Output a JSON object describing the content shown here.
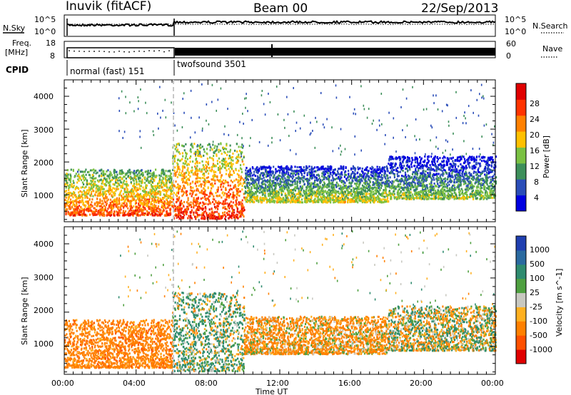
{
  "header": {
    "station": "Inuvik (fitACF)",
    "beam": "Beam 00",
    "date": "22/Sep/2013"
  },
  "top_panels": {
    "nsky_label": "N.Sky",
    "nsky_left_ticks": [
      "10^5",
      "10^0"
    ],
    "nsky_right_ticks": [
      "10^5",
      "10^0"
    ],
    "nsearch_label": "N.Search",
    "freq_label_line1": "Freq.",
    "freq_label_line2": "[MHz]",
    "freq_left_ticks": [
      "18",
      "8"
    ],
    "freq_right_ticks": [
      "60",
      "0"
    ],
    "nave_label": "Nave",
    "cpid_label": "CPID",
    "cpid_segments": [
      {
        "name": "normal (fast) 151",
        "start_hour": 0,
        "end_hour": 6
      },
      {
        "name": "twofsound 3501",
        "start_hour": 6,
        "end_hour": 24
      }
    ]
  },
  "x_axis": {
    "label": "Time UT",
    "ticks": [
      "00:00",
      "04:00",
      "08:00",
      "12:00",
      "16:00",
      "20:00",
      "00:00"
    ]
  },
  "power_panel": {
    "ylabel": "Slant Range [km]",
    "yticks": [
      "4000",
      "3000",
      "2000",
      "1000"
    ],
    "colorbar_label": "Power [dB]",
    "colorbar_ticks": [
      "28",
      "24",
      "20",
      "16",
      "12",
      "8",
      "4"
    ],
    "colors": [
      "#0000e0",
      "#2a4db8",
      "#3d8f5a",
      "#7ac142",
      "#ffc000",
      "#ff8000",
      "#ff3300",
      "#e00000"
    ]
  },
  "velocity_panel": {
    "ylabel": "Slant Range [km]",
    "yticks": [
      "4000",
      "3000",
      "2000",
      "1000"
    ],
    "colorbar_label": "Velocity [m s^-1]",
    "colorbar_ticks": [
      "1000",
      "500",
      "100",
      "25",
      "-25",
      "-100",
      "-500",
      "-1000"
    ],
    "colors": [
      "#1f3fb0",
      "#2a6aa0",
      "#2e8b6f",
      "#4fa040",
      "#c8c8c0",
      "#ffb020",
      "#ff8000",
      "#ff5000",
      "#e00000"
    ]
  },
  "chart_data": {
    "type": "heatmap",
    "title": "Inuvik (fitACF)  Beam 00  22/Sep/2013",
    "xlabel": "Time UT",
    "ylabel": "Slant Range [km]",
    "xlim_hours": [
      0,
      24
    ],
    "ylim_km": [
      180,
      4500
    ],
    "power_colorbar_range_db": [
      0,
      30
    ],
    "velocity_colorbar_range_ms": [
      -1000,
      1000
    ],
    "echo_bands": [
      {
        "start_hour": 0,
        "end_hour": 6,
        "range_km": [
          400,
          1800
        ],
        "power_db": 24,
        "velocity_ms": -300
      },
      {
        "start_hour": 6,
        "end_hour": 10,
        "range_km": [
          300,
          2600
        ],
        "power_db": 26,
        "velocity_ms": 100
      },
      {
        "start_hour": 10,
        "end_hour": 18,
        "range_km": [
          800,
          1900
        ],
        "power_db": 16,
        "velocity_ms": -150
      },
      {
        "start_hour": 18,
        "end_hour": 24,
        "range_km": [
          900,
          2200
        ],
        "power_db": 14,
        "velocity_ms": 0
      }
    ]
  }
}
